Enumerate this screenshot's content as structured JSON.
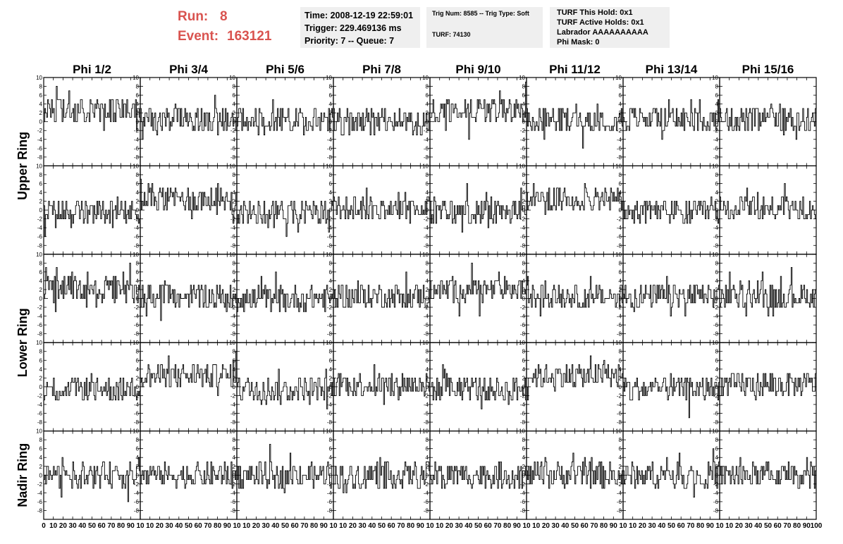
{
  "header": {
    "run_label": "Run:",
    "run_value": "8",
    "event_label": "Event:",
    "event_value": "163121"
  },
  "info_box_1": {
    "lines": [
      "Time: 2008-12-19 22:59:01",
      "Trigger: 229.469136 ms",
      "Priority: 7 -- Queue: 7"
    ]
  },
  "info_box_2": {
    "lines": [
      "Trig Num: 8585 -- Trig Type: Soft",
      "TURF: 74130"
    ]
  },
  "info_box_3": {
    "lines": [
      "TURF This Hold: 0x1",
      "TURF Active Holds: 0x1",
      "Labrador AAAAAAAAAA",
      "Phi Mask: 0"
    ]
  },
  "chart_data": {
    "type": "line",
    "columns": [
      "Phi 1/2",
      "Phi 3/4",
      "Phi 5/6",
      "Phi 7/8",
      "Phi 9/10",
      "Phi 11/12",
      "Phi 13/14",
      "Phi 15/16"
    ],
    "row_groups": [
      {
        "label": "Upper Ring",
        "rows": [
          0,
          1
        ]
      },
      {
        "label": "Lower Ring",
        "rows": [
          2,
          3
        ]
      },
      {
        "label": "Nadir Ring",
        "rows": [
          4
        ]
      }
    ],
    "xlim": [
      0,
      100
    ],
    "ylim": [
      -10,
      10
    ],
    "ytick_labels": [
      "-8",
      "-6",
      "-4",
      "-2",
      "0",
      "2",
      "4",
      "6",
      "8",
      "10"
    ],
    "xtick_labels_first": [
      "0",
      "10",
      "20",
      "30",
      "40",
      "50",
      "60",
      "70",
      "80",
      "90",
      "10"
    ],
    "xtick_labels": [
      "10",
      "20",
      "30",
      "40",
      "50",
      "60",
      "70",
      "80",
      "90",
      "10"
    ],
    "xtick_labels_last": [
      "10",
      "20",
      "30",
      "40",
      "50",
      "60",
      "70",
      "80",
      "90",
      "100"
    ],
    "series_count": 40,
    "samples_per_series": 100,
    "approx_mean_by_panel": [
      [
        2.5,
        0.5,
        0.5,
        0.0,
        2.5,
        0.5,
        0.5,
        0.5
      ],
      [
        -0.5,
        2.5,
        -0.5,
        0.5,
        -0.5,
        2.5,
        -0.5,
        0.5
      ],
      [
        2.0,
        0.5,
        0.0,
        0.5,
        2.0,
        0.5,
        0.5,
        0.5
      ],
      [
        -0.5,
        2.5,
        -0.5,
        0.5,
        -0.5,
        2.5,
        -0.5,
        0.5
      ],
      [
        0.0,
        0.0,
        0.0,
        0.0,
        0.0,
        0.0,
        0.0,
        0.0
      ]
    ],
    "approx_spread": 4,
    "line_color": "#000000",
    "grid": false
  }
}
